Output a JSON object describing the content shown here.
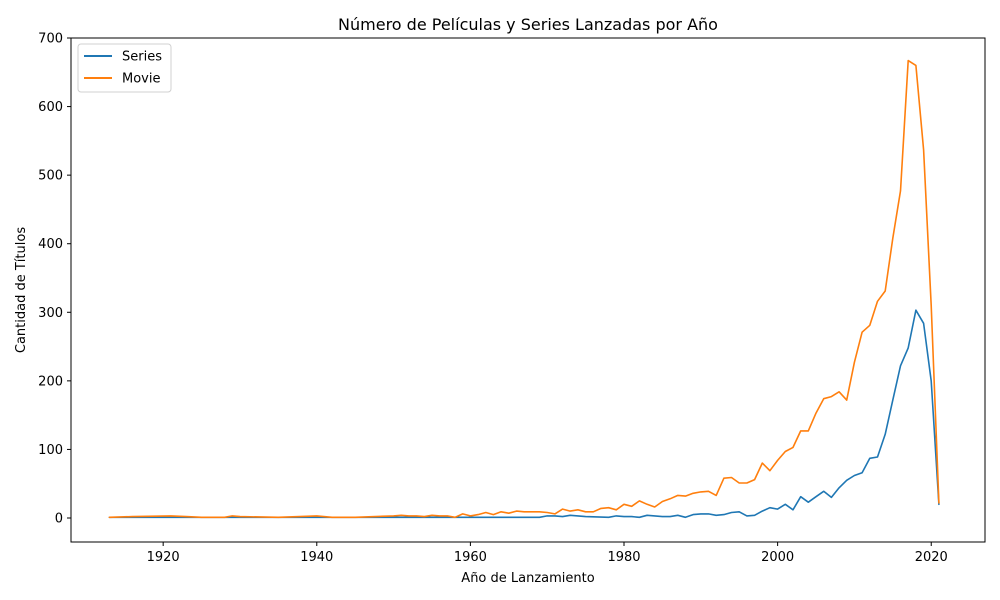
{
  "chart_data": {
    "type": "line",
    "title": "Número de Películas y Series Lanzadas por Año",
    "xlabel": "Año de Lanzamiento",
    "ylabel": "Cantidad de Títulos",
    "xlim": [
      1908,
      2027
    ],
    "ylim": [
      -35,
      700
    ],
    "x_ticks": [
      1920,
      1940,
      1960,
      1980,
      2000,
      2020
    ],
    "y_ticks": [
      0,
      100,
      200,
      300,
      400,
      500,
      600,
      700
    ],
    "grid": false,
    "legend_position": "top-left",
    "colors": {
      "Series": "#1f77b4",
      "Movie": "#ff7f0e"
    },
    "series": [
      {
        "name": "Series",
        "x": [
          1913,
          1920,
          1925,
          1930,
          1940,
          1946,
          1950,
          1955,
          1960,
          1965,
          1968,
          1969,
          1970,
          1971,
          1972,
          1973,
          1975,
          1978,
          1979,
          1980,
          1981,
          1982,
          1983,
          1984,
          1985,
          1986,
          1987,
          1988,
          1989,
          1990,
          1991,
          1992,
          1993,
          1994,
          1995,
          1996,
          1997,
          1998,
          1999,
          2000,
          2001,
          2002,
          2003,
          2004,
          2005,
          2006,
          2007,
          2008,
          2009,
          2010,
          2011,
          2012,
          2013,
          2014,
          2015,
          2016,
          2017,
          2018,
          2019,
          2020,
          2021
        ],
        "y": [
          1,
          1,
          1,
          1,
          1,
          1,
          1,
          1,
          1,
          1,
          1,
          1,
          3,
          3,
          2,
          4,
          2,
          1,
          3,
          2,
          2,
          1,
          4,
          3,
          2,
          2,
          4,
          1,
          5,
          6,
          6,
          4,
          5,
          8,
          9,
          3,
          4,
          10,
          15,
          13,
          20,
          12,
          31,
          23,
          31,
          39,
          30,
          44,
          55,
          62,
          66,
          87,
          89,
          122,
          172,
          222,
          248,
          303,
          284,
          200,
          20
        ]
      },
      {
        "name": "Movie",
        "x": [
          1913,
          1916,
          1921,
          1923,
          1925,
          1928,
          1929,
          1930,
          1935,
          1940,
          1942,
          1945,
          1950,
          1951,
          1952,
          1953,
          1954,
          1955,
          1956,
          1957,
          1958,
          1959,
          1960,
          1961,
          1962,
          1963,
          1964,
          1965,
          1966,
          1967,
          1968,
          1969,
          1970,
          1971,
          1972,
          1973,
          1974,
          1975,
          1976,
          1977,
          1978,
          1979,
          1980,
          1981,
          1982,
          1983,
          1984,
          1985,
          1986,
          1987,
          1988,
          1989,
          1990,
          1991,
          1992,
          1993,
          1994,
          1995,
          1996,
          1997,
          1998,
          1999,
          2000,
          2001,
          2002,
          2003,
          2004,
          2005,
          2006,
          2007,
          2008,
          2009,
          2010,
          2011,
          2012,
          2013,
          2014,
          2015,
          2016,
          2017,
          2018,
          2019,
          2020,
          2021
        ],
        "y": [
          1,
          2,
          3,
          2,
          1,
          1,
          3,
          2,
          1,
          3,
          1,
          1,
          3,
          4,
          3,
          3,
          2,
          4,
          3,
          3,
          1,
          6,
          3,
          5,
          8,
          5,
          9,
          7,
          10,
          9,
          9,
          9,
          8,
          6,
          13,
          10,
          12,
          9,
          9,
          14,
          15,
          12,
          20,
          17,
          25,
          20,
          16,
          24,
          28,
          33,
          32,
          36,
          38,
          39,
          33,
          58,
          59,
          51,
          51,
          56,
          80,
          69,
          84,
          97,
          103,
          127,
          127,
          153,
          174,
          177,
          184,
          172,
          227,
          271,
          281,
          316,
          331,
          408,
          477,
          667,
          660,
          537,
          310,
          22
        ]
      }
    ]
  }
}
